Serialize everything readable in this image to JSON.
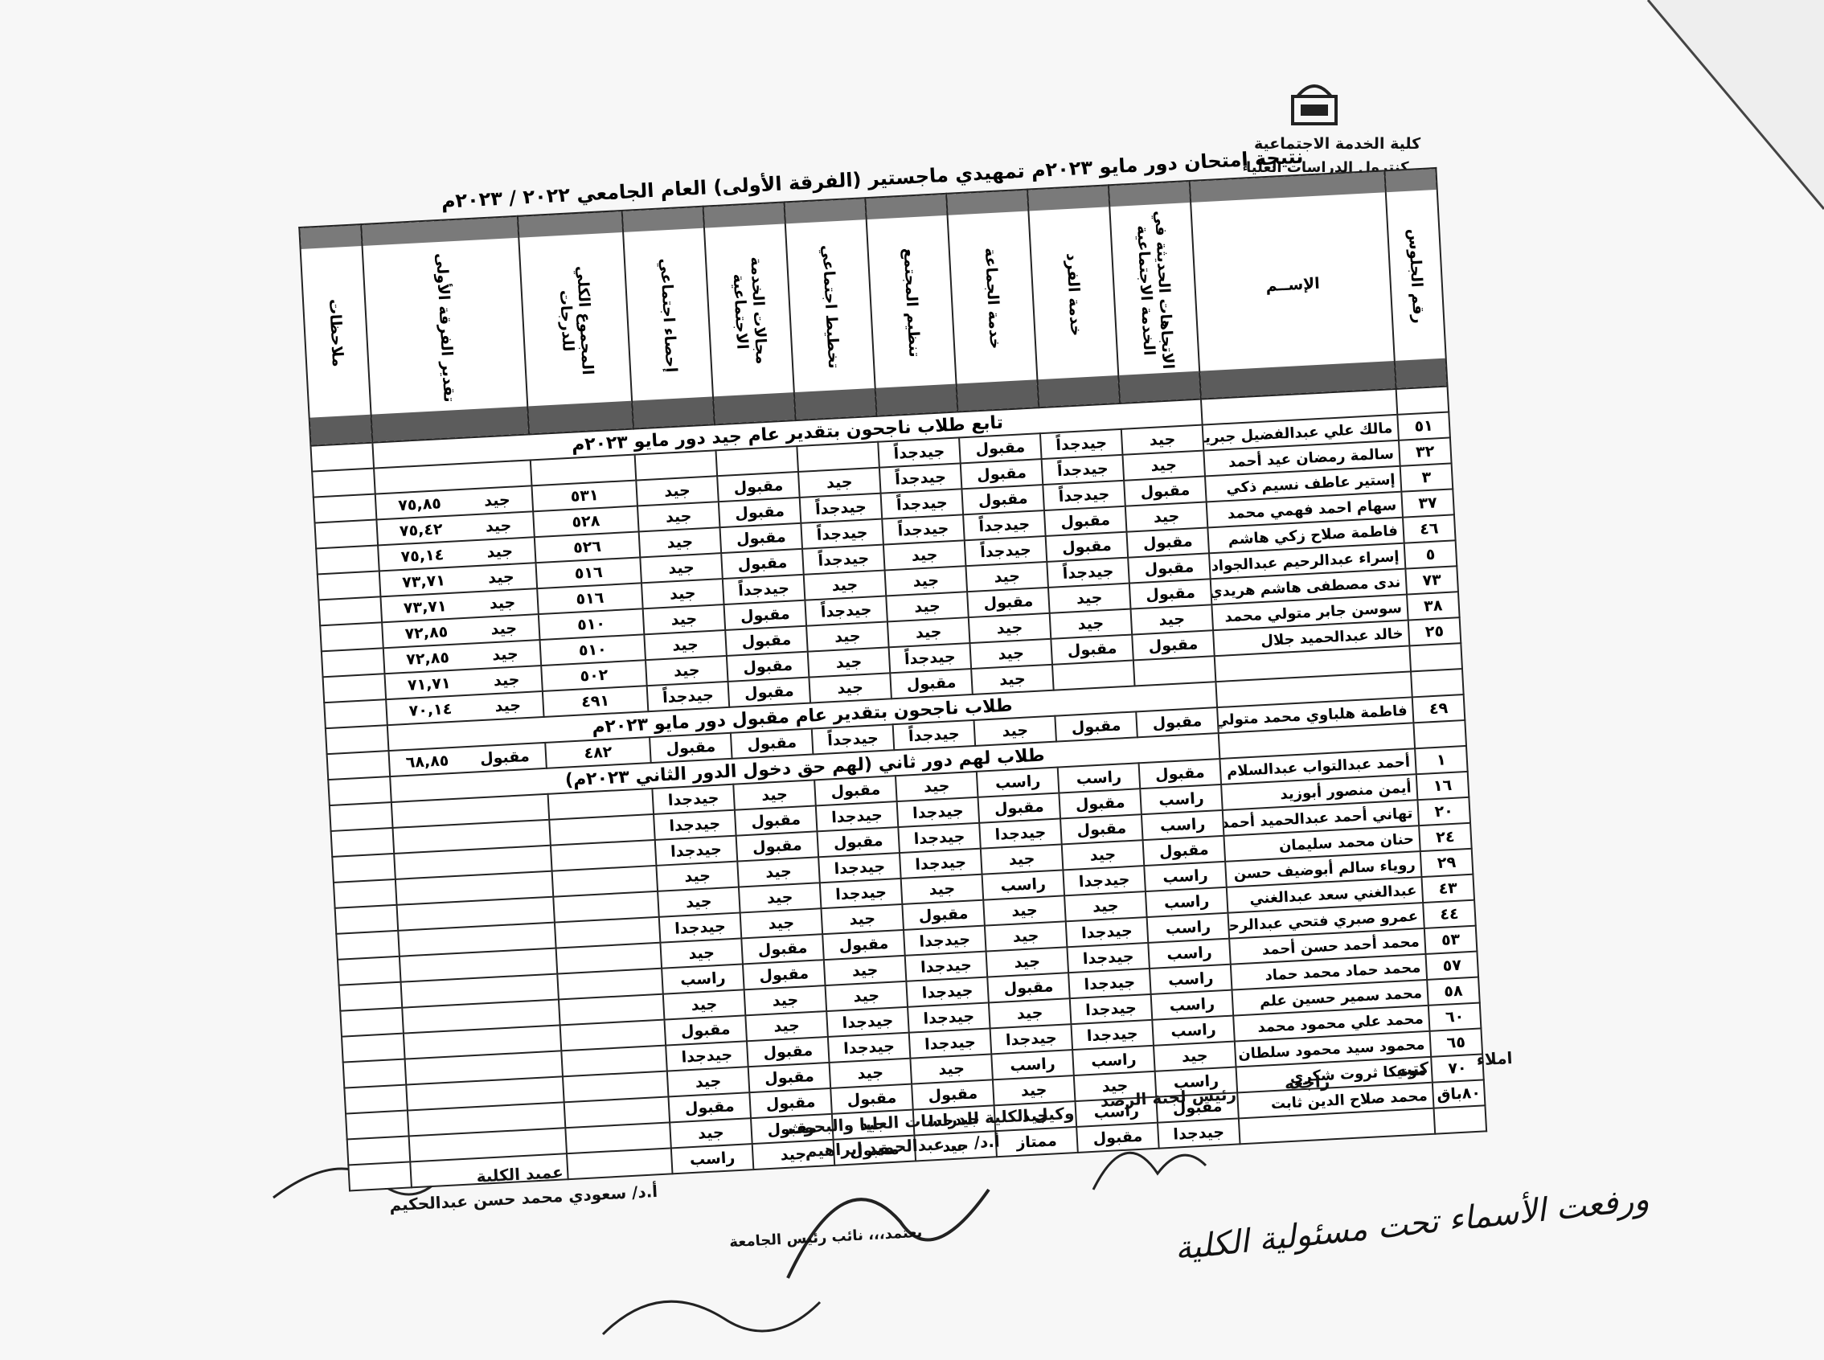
{
  "header": {
    "faculty": "كلية الخدمة الاجتماعية",
    "department": "كنترول الدراسات العليا",
    "title": "نتيجة إمتحان دور مايو ٢٠٢٣م تمهيدي ماجستير (الفرقة الأولى) العام الجامعي ٢٠٢٢ / ٢٠٢٣م"
  },
  "table": {
    "columns": [
      "رقم الجلوس",
      "الإســم",
      "الاتجاهات الحديثة في الخدمة الاجتماعية",
      "خدمة الفرد",
      "خدمة الجماعة",
      "تنظيم المجتمع",
      "تخطيط اجتماعي",
      "مجالات الخدمة الاجتماعية",
      "إحصاء اجتماعي",
      "المجموع الكلي للدرجات",
      "تقدير الفرقة الأولى",
      "ملاحظات"
    ],
    "rows": [
      {
        "section": "تابع طلاب ناجحون بتقدير عام جيد دور مايو ٢٠٢٣م"
      },
      {
        "seat": "٥١",
        "name": "مالك علي عبدالفضيل جبريل",
        "grades": [
          "جيد",
          "جيدجداً",
          "مقبول",
          "جيدجداً",
          null,
          null,
          null
        ]
      },
      {
        "seat": "٣٢",
        "name": "سالمة رمضان عيد أحمد",
        "grades": [
          "جيد",
          "جيدجداً",
          "مقبول",
          "جيدجداً",
          "جيد",
          "مقبول",
          "جيد"
        ],
        "total": "٥٣١",
        "rating": "جيد",
        "score": "٧٥,٨٥"
      },
      {
        "seat": "٣",
        "name": "إستير عاطف نسيم ذكي",
        "grades": [
          "مقبول",
          "جيدجداً",
          "مقبول",
          "جيدجداً",
          "جيدجداً",
          "مقبول",
          "جيد"
        ],
        "total": "٥٢٨",
        "rating": "جيد",
        "score": "٧٥,٤٢"
      },
      {
        "seat": "٣٧",
        "name": "سهام احمد فهمي محمد",
        "grades": [
          "جيد",
          "مقبول",
          "جيدجداً",
          "جيدجداً",
          "جيدجداً",
          "مقبول",
          "جيد"
        ],
        "total": "٥٢٦",
        "rating": "جيد",
        "score": "٧٥,١٤"
      },
      {
        "seat": "٤٦",
        "name": "فاطمة صلاح زكي هاشم",
        "grades": [
          "مقبول",
          "مقبول",
          "جيدجداً",
          "جيد",
          "جيدجداً",
          "مقبول",
          "جيد"
        ],
        "total": "٥١٦",
        "rating": "جيد",
        "score": "٧٣,٧١"
      },
      {
        "seat": "٥",
        "name": "إسراء عبدالرحيم عبدالجواد",
        "grades": [
          "مقبول",
          "جيدجداً",
          "جيد",
          "جيد",
          "جيد",
          "جيدجداً",
          "جيد"
        ],
        "total": "٥١٦",
        "rating": "جيد",
        "score": "٧٣,٧١"
      },
      {
        "seat": "٧٣",
        "name": "ندى مصطفى هاشم هريدي",
        "grades": [
          "مقبول",
          "جيد",
          "مقبول",
          "جيد",
          "جيدجداً",
          "مقبول",
          "جيد"
        ],
        "total": "٥١٠",
        "rating": "جيد",
        "score": "٧٢,٨٥"
      },
      {
        "seat": "٣٨",
        "name": "سوسن جابر متولي محمد",
        "grades": [
          "جيد",
          "جيد",
          "جيد",
          "جيد",
          "جيد",
          "مقبول",
          "جيد"
        ],
        "total": "٥١٠",
        "rating": "جيد",
        "score": "٧٢,٨٥"
      },
      {
        "seat": "٢٥",
        "name": "خالد عبدالحميد جلال",
        "grades": [
          "مقبول",
          "مقبول",
          "جيد",
          "جيدجداً",
          "جيد",
          "مقبول",
          "جيد"
        ],
        "total": "٥٠٢",
        "rating": "جيد",
        "score": "٧١,٧١"
      },
      {
        "grades": [
          null,
          null,
          "جيد",
          "مقبول",
          "جيد",
          "مقبول",
          "جيدجداً"
        ],
        "total": "٤٩١",
        "rating": "جيد",
        "score": "٧٠,١٤"
      },
      {
        "section": "طلاب ناجحون بتقدير عام مقبول دور مايو ٢٠٢٣م"
      },
      {
        "seat": "٤٩",
        "name": "فاطمة هلباوي محمد متولي",
        "grades": [
          "مقبول",
          "مقبول",
          "جيد",
          "جيدجداً",
          "جيدجداً",
          "مقبول",
          "مقبول"
        ],
        "total": "٤٨٢",
        "rating": "مقبول",
        "score": "٦٨,٨٥"
      },
      {
        "section": "طلاب لهم دور ثاني (لهم حق دخول الدور الثاني ٢٠٢٣م)"
      },
      {
        "seat": "١",
        "name": "أحمد عبدالتواب عبدالسلام",
        "grades": [
          "مقبول",
          "راسب",
          "راسب",
          "جيد",
          "مقبول",
          "جيد",
          "جيدجدا"
        ]
      },
      {
        "seat": "١٦",
        "name": "أيمن منصور أبوزيد",
        "grades": [
          "راسب",
          "مقبول",
          "مقبول",
          "جيدجدا",
          "جيدجدا",
          "مقبول",
          "جيدجدا"
        ]
      },
      {
        "seat": "٢٠",
        "name": "تهاني أحمد عبدالحميد أحمد",
        "grades": [
          "راسب",
          "مقبول",
          "جيدجدا",
          "جيدجدا",
          "مقبول",
          "مقبول",
          "جيدجدا"
        ]
      },
      {
        "seat": "٢٤",
        "name": "حنان محمد سليمان",
        "grades": [
          "مقبول",
          "جيد",
          "جيد",
          "جيدجدا",
          "جيدجدا",
          "جيد",
          "جيد"
        ]
      },
      {
        "seat": "٢٩",
        "name": "روياء سالم أبوضيف حسن",
        "grades": [
          "راسب",
          "جيدجدا",
          "راسب",
          "جيد",
          "جيدجدا",
          "جيد",
          "جيد"
        ]
      },
      {
        "seat": "٤٣",
        "name": "عبدالغني سعد عبدالغني",
        "grades": [
          "راسب",
          "جيد",
          "جيد",
          "مقبول",
          "جيد",
          "جيد",
          "جيدجدا"
        ]
      },
      {
        "seat": "٤٤",
        "name": "عمرو صبري فتحي عبدالرحيم",
        "grades": [
          "راسب",
          "جيدجدا",
          "جيد",
          "جيدجدا",
          "مقبول",
          "مقبول",
          "جيد"
        ]
      },
      {
        "seat": "٥٣",
        "name": "محمد أحمد حسن أحمد",
        "grades": [
          "راسب",
          "جيدجدا",
          "جيد",
          "جيدجدا",
          "جيد",
          "مقبول",
          "راسب"
        ]
      },
      {
        "seat": "٥٧",
        "name": "محمد حماد محمد حماد",
        "grades": [
          "راسب",
          "جيدجدا",
          "مقبول",
          "جيدجدا",
          "جيد",
          "جيد",
          "جيد"
        ]
      },
      {
        "seat": "٥٨",
        "name": "محمد سمير حسين علم",
        "grades": [
          "راسب",
          "جيدجدا",
          "جيد",
          "جيدجدا",
          "جيدجدا",
          "جيد",
          "مقبول"
        ]
      },
      {
        "seat": "٦٠",
        "name": "محمد علي محمود محمد",
        "grades": [
          "راسب",
          "جيدجدا",
          "جيدجدا",
          "جيدجدا",
          "جيدجدا",
          "مقبول",
          "جيدجدا"
        ]
      },
      {
        "seat": "٦٥",
        "name": "محمود سيد محمود سلطان",
        "grades": [
          "جيد",
          "راسب",
          "راسب",
          "جيد",
          "جيد",
          "مقبول",
          "جيد"
        ]
      },
      {
        "seat": "٧٠",
        "name": "مونيكا ثروت شكري",
        "grades": [
          "راسب",
          "جيد",
          "جيد",
          "مقبول",
          "مقبول",
          "مقبول",
          "مقبول"
        ]
      },
      {
        "seat": "٨٠باق",
        "name": "محمد صلاح الدين ثابت",
        "grades": [
          "مقبول",
          "راسب",
          "جيد",
          "جيدجدا",
          "جيد",
          "مقبول",
          "جيد"
        ]
      },
      {
        "grades": [
          "جيدجدا",
          "مقبول",
          "ممتاز",
          "جيد",
          "مقبول",
          "جيد",
          "راسب"
        ]
      }
    ]
  },
  "footer": {
    "dictated": "املاء",
    "written": "كتبه",
    "reviewed": "راجعه",
    "committee_head": "رئيس لجنة الرصد",
    "vice_dean_title": "وكيل الكلية للدراسات العليا والبحوث",
    "vice_dean_name": "أ.د/ ... عبدالحميد إبراهيم",
    "dean_title": "عميد الكلية",
    "dean_name": "أ.د/ سعودي محمد حسن عبدالحكيم",
    "approval": "يعتمد،،، نائب رئيس الجامعة",
    "handwritten_note": "ورفعت الأسماء تحت مسئولية الكلية"
  }
}
